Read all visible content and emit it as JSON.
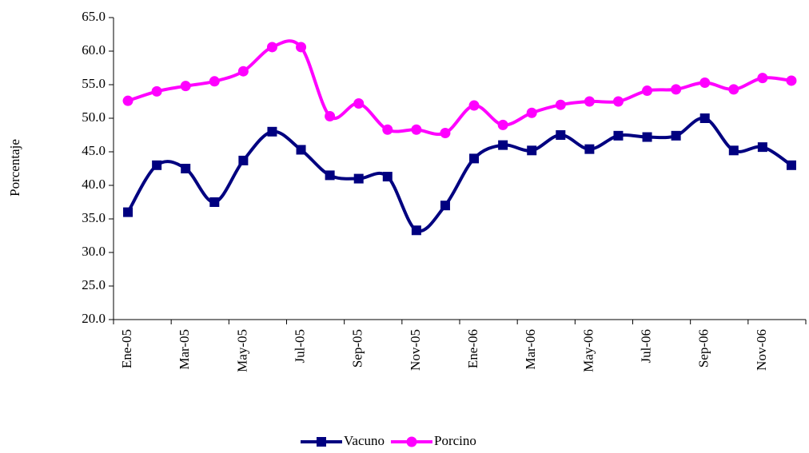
{
  "chart_data": {
    "type": "line",
    "y_label": "Porcentaje",
    "categories": [
      "Ene-05",
      null,
      "Mar-05",
      null,
      "May-05",
      null,
      "Jul-05",
      null,
      "Sep-05",
      null,
      "Nov-05",
      null,
      "Ene-06",
      null,
      "Mar-06",
      null,
      "May-06",
      null,
      "Jul-06",
      null,
      "Sep-06",
      null,
      "Nov-06",
      null
    ],
    "series": [
      {
        "name": "Vacuno",
        "color": "#000080",
        "marker": "square",
        "values": [
          36.0,
          43.0,
          42.5,
          37.5,
          43.7,
          48.0,
          45.3,
          41.5,
          41.0,
          41.3,
          33.3,
          37.0,
          44.0,
          46.0,
          45.2,
          47.5,
          45.4,
          47.4,
          47.2,
          47.4,
          50.0,
          45.2,
          45.7,
          43.0
        ]
      },
      {
        "name": "Porcino",
        "color": "#ff00ff",
        "marker": "circle",
        "values": [
          52.6,
          54.0,
          54.8,
          55.5,
          57.0,
          60.6,
          60.6,
          50.3,
          52.2,
          48.3,
          48.3,
          47.8,
          51.9,
          49.0,
          50.8,
          52.0,
          52.5,
          52.5,
          54.1,
          54.3,
          55.3,
          54.3,
          56.0,
          55.6
        ]
      }
    ],
    "ylim": [
      20,
      65
    ],
    "yticks": [
      {
        "value": 20,
        "label": "20.0"
      },
      {
        "value": 25,
        "label": "25.0"
      },
      {
        "value": 30,
        "label": "30.0"
      },
      {
        "value": 35,
        "label": "35.0"
      },
      {
        "value": 40,
        "label": "40.0"
      },
      {
        "value": 45,
        "label": "45.0"
      },
      {
        "value": 50,
        "label": "50.0"
      },
      {
        "value": 55,
        "label": "55.0"
      },
      {
        "value": 60,
        "label": "60.0"
      },
      {
        "value": 65,
        "label": "65.0"
      }
    ],
    "legend": "bottom"
  }
}
